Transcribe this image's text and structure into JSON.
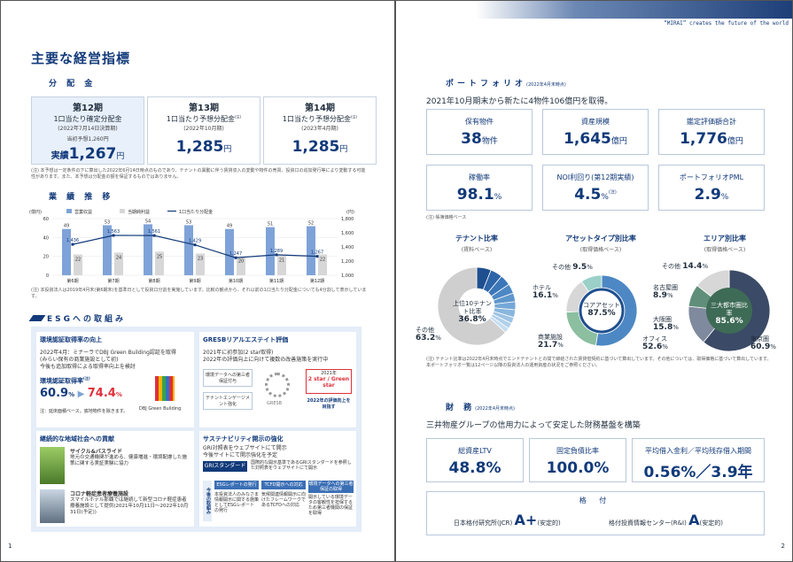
{
  "header": {
    "tagline": "“MIRAI” creates the future of the world"
  },
  "left": {
    "title": "主要な経営指標",
    "dist_section": "分 配 金",
    "periods": [
      {
        "name": "第12期",
        "l1": "1口当たり確定分配金",
        "l2": "(2022年7月14日決算期)",
        "forecast": "当初予想1,260円",
        "actual_label": "実績",
        "value": "1,267",
        "unit": "円"
      },
      {
        "name": "第13期",
        "l1": "1口当たり予想分配金",
        "note": "(注)",
        "l2": "(2022年10月期)",
        "value": "1,285",
        "unit": "円"
      },
      {
        "name": "第14期",
        "l1": "1口当たり予想分配金",
        "note": "(注)",
        "l2": "(2023年4月期)",
        "value": "1,285",
        "unit": "円"
      }
    ],
    "dist_note": "(注) 本予想は一定条件の下に算出した2022年6月14日時点のものであり、テナントの異動に伴う賃貸収入の変動や物件の売買、投資口の追加発行等により変動する可能性があります。また、本予想は分配金の額を保証するものではありません。",
    "perf_section": "業 績 推 移",
    "chart_note": "(注) 本投資法人は2019年4月末(第6期末)を基準日として投資口分割を実施しています。比較の観点から、それ以前の1口当たり分配金についても4分割して表示しています。",
    "esg": {
      "title": "ESGへの取組み",
      "env_title": "環境認証取得率の向上",
      "env_text": [
        "2022年4月：ミナーラでDBJ Green Building認証を取得",
        "(みらい保有の商業施設として初)",
        "今後も追加取得による取得率向上を検討"
      ],
      "env_rate_label": "環境認証取得率",
      "env_rate_note": "(注)",
      "rate_from": "60.9",
      "rate_to": "74.4",
      "pct": "%",
      "rate_footnote": "注：延床面積ベース。底地物件を除きます。",
      "dbj": "DBJ Green Building",
      "gresb_title": "GRESBリアルエステイト評価",
      "gresb_text": [
        "2021年に初参加(2 star取得)",
        "2022年の評価向上に向けて複数の改善施策を実行中"
      ],
      "gresb_box1": "環境データへの第三者保証付与",
      "gresb_box2": "テナントエンゲージメント強化",
      "gresb_logo": "GRESB",
      "gresb_year": "2021年",
      "gresb_star": "2 star / Green star",
      "gresb_goal": "2022年の評価向上を目指す",
      "comm_title": "継続的な地域社会への貢献",
      "comm1_title": "サイクル&バスライド",
      "comm1_text": "地元の交通機関が進める、健康増進・環境配慮した施策に関する実証実験に協力",
      "comm2_title": "コロナ軽症患者療養施設",
      "comm2_text": "スマイルホテル那覇では継続して新型コロナ軽症患者療養施設として提供(2021年10月11日～2022年10月31日(予定))",
      "sus_title": "サステナビリティ開示の強化",
      "sus_text": [
        "GRI対照表をウェブサイトにて開示",
        "今後サイトにて開示強化を予定"
      ],
      "gri_btn": "GRIスタンダード",
      "gri_text": "国際的な開示基準であるGRIスタンダードを参照した対照表をウェブサイトにて開示",
      "plan_label": "今後の取組み",
      "plans": [
        {
          "title": "ESGレポートの発行",
          "text": "本投資法人のみなさま情報開示に関する施策としてESGレポートの発行"
        },
        {
          "title": "TCFD開示への対応",
          "text": "気候関連情報開示に向けたフレームワークであるTCFDへの対応"
        },
        {
          "title": "環境データへの第三者保証の取得",
          "text": "開示している環境データの客観性を担保するため第三者機関の保証を取得"
        }
      ]
    },
    "page_no": "1"
  },
  "chart_data": {
    "type": "bar+line",
    "categories": [
      "第6期",
      "第7期",
      "第8期",
      "第9期",
      "第10期",
      "第11期",
      "第12期"
    ],
    "legend": [
      "営業収益",
      "当期純利益",
      "1口当たり分配金"
    ],
    "units_left": "(億円)",
    "units_right": "(円)",
    "series": [
      {
        "name": "営業収益",
        "values": [
          49,
          53,
          54,
          53,
          49,
          51,
          52
        ],
        "color": "#7fa3d8"
      },
      {
        "name": "当期純利益",
        "values": [
          22,
          24,
          25,
          23,
          20,
          21,
          22
        ],
        "color": "#d7d7d7"
      },
      {
        "name": "1口当たり分配金",
        "values": [
          1436,
          1563,
          1561,
          1429,
          1247,
          1289,
          1267
        ],
        "color": "#123a7a"
      }
    ],
    "ylim_left": [
      0,
      60
    ],
    "left_ticks": [
      "0",
      "20",
      "40",
      "60"
    ],
    "ylim_right": [
      1000,
      1800
    ],
    "right_ticks": [
      "1,000",
      "1,200",
      "1,400",
      "1,600",
      "1,800"
    ]
  },
  "right": {
    "pf_section": "ポートフォリオ",
    "pf_date": "(2022年4月末時点)",
    "pf_lead": "2021年10月期末から新たに4物件106億円を取得。",
    "kpis": [
      {
        "label": "保有物件",
        "value": "38",
        "unit": "物件"
      },
      {
        "label": "資産規模",
        "value": "1,645",
        "unit": "億円"
      },
      {
        "label": "鑑定評価額合計",
        "value": "1,776",
        "unit": "億円"
      },
      {
        "label": "稼働率",
        "value": "98.1",
        "unit": "%"
      },
      {
        "label": "NOI利回り(第12期実績)",
        "value": "4.5",
        "unit": "%",
        "note": "(注)"
      },
      {
        "label": "ポートフォリオPML",
        "value": "2.9",
        "unit": "%"
      }
    ],
    "kpi_note": "(注) 帳簿価格ベース",
    "donuts": [
      {
        "title": "テナント比率",
        "sub": "(賃料ベース)",
        "center": "上位10テナント比率",
        "center_v": "36.8%",
        "other": "その他",
        "other_v": "63.2",
        "pct": "%"
      },
      {
        "title": "アセットタイプ別比率",
        "sub": "(取得価格ベース)",
        "center": "コアアセット",
        "center_v": "87.5%",
        "items": [
          {
            "n": "オフィス",
            "v": "52.6"
          },
          {
            "n": "商業施設",
            "v": "21.7"
          },
          {
            "n": "ホテル",
            "v": "16.1"
          },
          {
            "n": "その他",
            "v": "9.5"
          }
        ],
        "pct": "%"
      },
      {
        "title": "エリア別比率",
        "sub": "(取得価格ベース)",
        "center": "三大都市圏比率",
        "center_v": "85.6%",
        "items": [
          {
            "n": "東京圏",
            "v": "60.9"
          },
          {
            "n": "大阪圏",
            "v": "15.8"
          },
          {
            "n": "名古屋圏",
            "v": "8.9"
          },
          {
            "n": "その他",
            "v": "14.4"
          }
        ],
        "pct": "%"
      }
    ],
    "donut_note1": "(注) テナント比率は2022年4月末時点でエンドテナントとの間で締結された賃貸借契約に基づいて算出しています。その他については、取得価格に基づいて算出しています。",
    "donut_note2": "本ポートフォリオ一覧は12ページ以降の投資法人の運用資産の状況をご参照ください。",
    "fin_section": "財 務",
    "fin_date": "(2022年4月末時点)",
    "fin_lead": "三井物産グループの信用力によって安定した財務基盤を構築",
    "fin": [
      {
        "label": "総資産LTV",
        "value": "48.8%"
      },
      {
        "label": "固定負債比率",
        "value": "100.0%"
      },
      {
        "label": "平均借入金利／平均残存借入期間",
        "value": "0.56%／3.9年"
      }
    ],
    "rating_title": "格 付",
    "rating1": "日本格付研究所(JCR)",
    "rating1_v": "A+",
    "rating1_o": "(安定的)",
    "rating2": "格付投資情報センター(R&I)",
    "rating2_v": "A",
    "rating2_o": "(安定的)",
    "page_no": "2"
  },
  "colors": {
    "navy": "#123a7a",
    "accent": "#e0303b",
    "blue": "#7fa3d8",
    "grey": "#d7d7d7"
  }
}
